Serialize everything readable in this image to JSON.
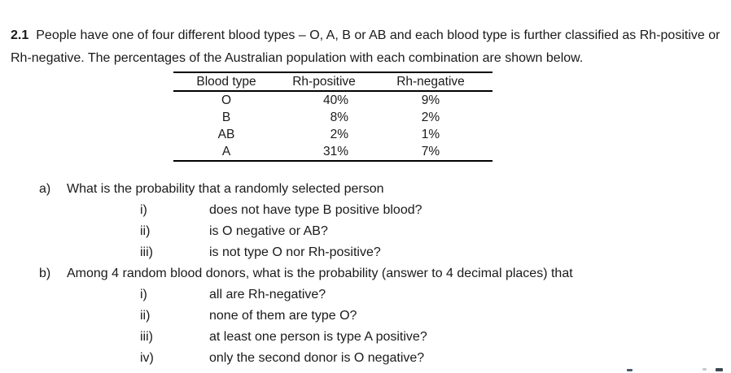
{
  "page": {
    "background_color": "#ffffff",
    "text_color": "#1a1a1a",
    "rule_color": "#000000"
  },
  "intro": {
    "number": "2.1",
    "text": "People have one of four different blood types – O, A, B or AB and each blood type is further classified as Rh-positive or Rh-negative. The percentages of the Australian population with each combination are shown below."
  },
  "table": {
    "headers": [
      "Blood type",
      "Rh-positive",
      "Rh-negative"
    ],
    "rows": [
      {
        "blood_type": "O",
        "rh_positive": "40%",
        "rh_negative": "9%"
      },
      {
        "blood_type": "B",
        "rh_positive": "8%",
        "rh_negative": "2%"
      },
      {
        "blood_type": "AB",
        "rh_positive": "2%",
        "rh_negative": "1%"
      },
      {
        "blood_type": "A",
        "rh_positive": "31%",
        "rh_negative": "7%"
      }
    ]
  },
  "questions": [
    {
      "marker": "a)",
      "text": "What is the probability that a randomly selected person",
      "subitems": [
        {
          "marker": "i)",
          "text": "does not have type B positive blood?"
        },
        {
          "marker": "ii)",
          "text": "is O negative or AB?"
        },
        {
          "marker": "iii)",
          "text": "is not type O nor Rh-positive?"
        }
      ]
    },
    {
      "marker": "b)",
      "text": "Among 4 random blood donors, what is the probability (answer to 4 decimal places) that",
      "subitems": [
        {
          "marker": "i)",
          "text": "all are Rh-negative?"
        },
        {
          "marker": "ii)",
          "text": "none of them are type O?"
        },
        {
          "marker": "iii)",
          "text": "at least one person is type A positive?"
        },
        {
          "marker": "iv)",
          "text": "only the second donor is O negative?"
        }
      ]
    }
  ]
}
